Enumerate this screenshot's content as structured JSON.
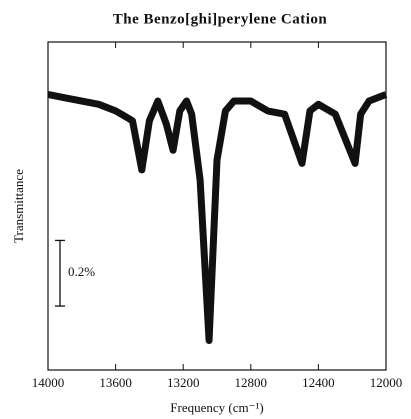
{
  "chart_data": {
    "type": "line",
    "title": "The  Benzo[ghi]perylene  Cation",
    "x_label": "Frequency (cm⁻¹)",
    "y_label": "Transmittance",
    "x": [
      14000,
      13900,
      13800,
      13700,
      13600,
      13500,
      13445,
      13400,
      13350,
      13300,
      13260,
      13220,
      13180,
      13150,
      13100,
      13047,
      13000,
      12950,
      12900,
      12800,
      12700,
      12600,
      12497,
      12450,
      12400,
      12300,
      12183,
      12150,
      12100,
      12000
    ],
    "series": [
      {
        "color": "#111111",
        "values": [
          0.84,
          0.83,
          0.82,
          0.81,
          0.79,
          0.76,
          0.61,
          0.76,
          0.82,
          0.75,
          0.67,
          0.79,
          0.82,
          0.78,
          0.58,
          0.09,
          0.64,
          0.79,
          0.82,
          0.82,
          0.79,
          0.78,
          0.63,
          0.79,
          0.81,
          0.78,
          0.63,
          0.78,
          0.82,
          0.84
        ]
      }
    ],
    "xlim": [
      14000,
      12000
    ],
    "xticks": [
      14000,
      13600,
      13200,
      12800,
      12400,
      12000
    ],
    "ylim": [
      0,
      1
    ],
    "scale_bar": {
      "value": 0.2,
      "label": "0.2%"
    }
  }
}
